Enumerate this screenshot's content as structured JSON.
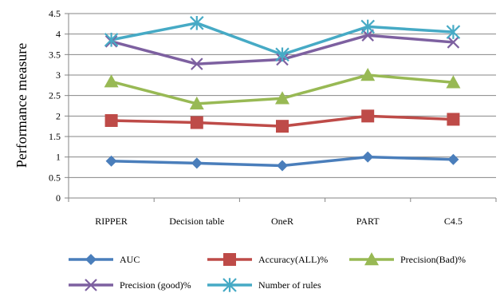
{
  "chart_data": {
    "type": "line",
    "title": "",
    "xlabel": "",
    "ylabel": "Performance measure",
    "categories": [
      "RIPPER",
      "Decision table",
      "OneR",
      "PART",
      "C4.5"
    ],
    "ylim": [
      0,
      4.5
    ],
    "ytick_step": 0.5,
    "ytick_labels": [
      "0",
      "0.5",
      "1",
      "1.5",
      "2",
      "2.5",
      "3",
      "3.5",
      "4",
      "4.5"
    ],
    "grid": true,
    "legend_position": "bottom",
    "series": [
      {
        "name": "AUC",
        "values": [
          0.9,
          0.85,
          0.79,
          1.0,
          0.94
        ],
        "color": "#4a7ebb",
        "marker": "diamond"
      },
      {
        "name": "Accuracy(ALL)%",
        "values": [
          1.89,
          1.84,
          1.75,
          2.0,
          1.92
        ],
        "color": "#be4b48",
        "marker": "square"
      },
      {
        "name": "Precision(Bad)%",
        "values": [
          2.84,
          2.3,
          2.43,
          3.0,
          2.82
        ],
        "color": "#98b954",
        "marker": "triangle"
      },
      {
        "name": "Precision (good)%",
        "values": [
          3.82,
          3.27,
          3.38,
          3.97,
          3.8
        ],
        "color": "#7d60a0",
        "marker": "x"
      },
      {
        "name": "Number of rules",
        "values": [
          3.86,
          4.27,
          3.5,
          4.18,
          4.05
        ],
        "color": "#46aac5",
        "marker": "star"
      }
    ]
  }
}
